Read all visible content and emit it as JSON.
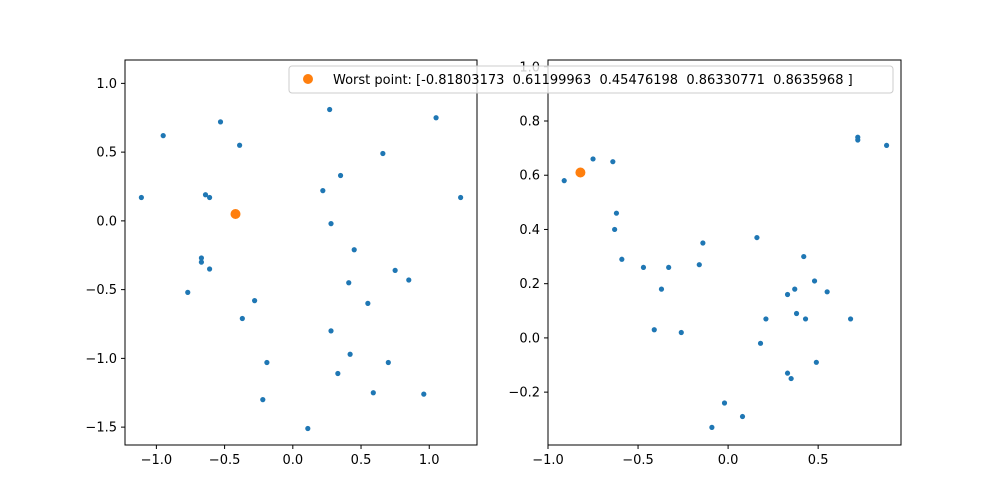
{
  "chart_data": [
    {
      "type": "scatter",
      "title": "",
      "xlabel": "",
      "ylabel": "",
      "xlim": [
        -1.23,
        1.35
      ],
      "ylim": [
        -1.63,
        1.17
      ],
      "xticks": [
        -1.0,
        -0.5,
        0.0,
        0.5,
        1.0
      ],
      "xtick_labels": [
        "−1.0",
        "−0.5",
        "0.0",
        "0.5",
        "1.0"
      ],
      "yticks": [
        -1.5,
        -1.0,
        -0.5,
        0.0,
        0.5,
        1.0
      ],
      "ytick_labels": [
        "−1.5",
        "−1.0",
        "−0.5",
        "0.0",
        "0.5",
        "1.0"
      ],
      "grid": false,
      "series": [
        {
          "color": "#1f77b4",
          "marker": "small-dot",
          "points": [
            [
              -1.11,
              0.17
            ],
            [
              -0.95,
              0.62
            ],
            [
              -0.53,
              0.72
            ],
            [
              -0.39,
              0.55
            ],
            [
              0.27,
              0.81
            ],
            [
              1.05,
              0.75
            ],
            [
              0.35,
              0.33
            ],
            [
              0.66,
              0.49
            ],
            [
              0.22,
              0.22
            ],
            [
              1.23,
              0.17
            ],
            [
              -0.64,
              0.19
            ],
            [
              -0.61,
              0.17
            ],
            [
              0.28,
              -0.02
            ],
            [
              0.45,
              -0.21
            ],
            [
              -0.67,
              -0.27
            ],
            [
              -0.67,
              -0.3
            ],
            [
              -0.61,
              -0.35
            ],
            [
              -0.77,
              -0.52
            ],
            [
              0.75,
              -0.36
            ],
            [
              0.85,
              -0.43
            ],
            [
              0.41,
              -0.45
            ],
            [
              -0.28,
              -0.58
            ],
            [
              0.55,
              -0.6
            ],
            [
              -0.37,
              -0.71
            ],
            [
              0.28,
              -0.8
            ],
            [
              0.42,
              -0.97
            ],
            [
              -0.19,
              -1.03
            ],
            [
              0.7,
              -1.03
            ],
            [
              0.33,
              -1.11
            ],
            [
              0.59,
              -1.25
            ],
            [
              -0.22,
              -1.3
            ],
            [
              0.96,
              -1.26
            ],
            [
              0.11,
              -1.51
            ]
          ]
        },
        {
          "name": "Worst point: [-0.81803173  0.61199963  0.45476198  0.86330771  0.8635968 ]",
          "color": "#ff7f0e",
          "marker": "dot",
          "points": [
            [
              -0.42,
              0.05
            ]
          ]
        }
      ],
      "legend": "top-right"
    },
    {
      "type": "scatter",
      "title": "",
      "xlabel": "",
      "ylabel": "",
      "xlim": [
        -1.0,
        0.96
      ],
      "ylim": [
        -0.395,
        1.025
      ],
      "xticks": [
        -1.0,
        -0.5,
        0.0,
        0.5
      ],
      "xtick_labels": [
        "−1.0",
        "−0.5",
        "0.0",
        "0.5"
      ],
      "yticks": [
        -0.2,
        0.0,
        0.2,
        0.4,
        0.6,
        0.8,
        1.0
      ],
      "ytick_labels": [
        "−0.2",
        "0.0",
        "0.2",
        "0.4",
        "0.6",
        "0.8",
        "1.0"
      ],
      "grid": false,
      "series": [
        {
          "color": "#1f77b4",
          "marker": "small-dot",
          "points": [
            [
              -0.91,
              0.58
            ],
            [
              -0.75,
              0.66
            ],
            [
              -0.64,
              0.65
            ],
            [
              -0.62,
              0.46
            ],
            [
              -0.63,
              0.4
            ],
            [
              -0.59,
              0.29
            ],
            [
              -0.47,
              0.26
            ],
            [
              -0.33,
              0.26
            ],
            [
              -0.37,
              0.18
            ],
            [
              -0.41,
              0.03
            ],
            [
              -0.26,
              0.02
            ],
            [
              -0.14,
              0.35
            ],
            [
              -0.16,
              0.27
            ],
            [
              0.16,
              0.37
            ],
            [
              0.21,
              0.07
            ],
            [
              0.18,
              -0.02
            ],
            [
              0.33,
              0.16
            ],
            [
              0.37,
              0.18
            ],
            [
              0.42,
              0.3
            ],
            [
              0.48,
              0.21
            ],
            [
              0.55,
              0.17
            ],
            [
              0.38,
              0.09
            ],
            [
              0.43,
              0.07
            ],
            [
              0.68,
              0.07
            ],
            [
              0.72,
              0.74
            ],
            [
              0.72,
              0.73
            ],
            [
              0.88,
              0.71
            ],
            [
              0.33,
              -0.13
            ],
            [
              0.35,
              -0.15
            ],
            [
              0.49,
              -0.09
            ],
            [
              -0.02,
              -0.24
            ],
            [
              0.08,
              -0.29
            ],
            [
              -0.09,
              -0.33
            ]
          ]
        },
        {
          "color": "#ff7f0e",
          "marker": "dot",
          "points": [
            [
              -0.82,
              0.61
            ]
          ]
        }
      ]
    }
  ]
}
